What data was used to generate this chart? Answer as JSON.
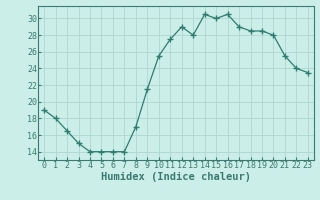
{
  "x": [
    0,
    1,
    2,
    3,
    4,
    5,
    6,
    7,
    8,
    9,
    10,
    11,
    12,
    13,
    14,
    15,
    16,
    17,
    18,
    19,
    20,
    21,
    22,
    23
  ],
  "y": [
    19,
    18,
    16.5,
    15,
    14,
    14,
    14,
    14,
    17,
    21.5,
    25.5,
    27.5,
    29,
    28,
    30.5,
    30,
    30.5,
    29,
    28.5,
    28.5,
    28,
    25.5,
    24,
    23.5
  ],
  "line_color": "#2e7d6e",
  "marker": "+",
  "marker_size": 4,
  "bg_color": "#cceee8",
  "grid_color": "#aad8d0",
  "xlabel": "Humidex (Indice chaleur)",
  "ylim": [
    13,
    31.5
  ],
  "yticks": [
    14,
    16,
    18,
    20,
    22,
    24,
    26,
    28,
    30
  ],
  "xlim": [
    -0.5,
    23.5
  ],
  "xticks": [
    0,
    1,
    2,
    3,
    4,
    5,
    6,
    7,
    8,
    9,
    10,
    11,
    12,
    13,
    14,
    15,
    16,
    17,
    18,
    19,
    20,
    21,
    22,
    23
  ],
  "xlabel_fontsize": 7.5,
  "tick_fontsize": 6.0,
  "spine_color": "#3a7a70"
}
